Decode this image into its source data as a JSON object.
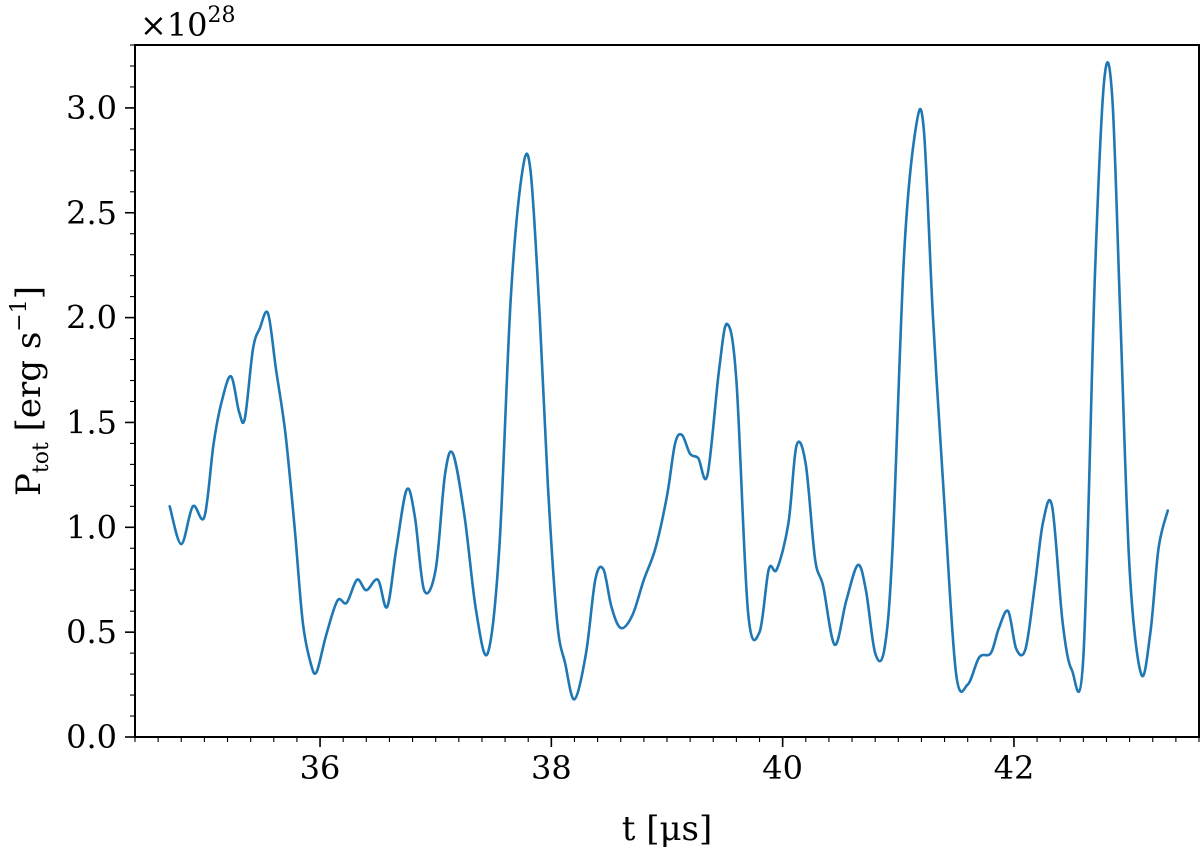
{
  "chart_data": {
    "type": "line",
    "title": "",
    "xlabel": "t [μs]",
    "ylabel": "P_tot [erg s^-1]",
    "ylabel_main": "P",
    "ylabel_sub": "tot",
    "ylabel_rest": " [erg s",
    "ylabel_sup": "−1",
    "ylabel_close": "]",
    "y_multiplier_prefix": "×10",
    "y_multiplier_exponent": "28",
    "xlim": [
      34.4,
      43.6
    ],
    "ylim": [
      0.0,
      3.3
    ],
    "x_major_ticks": [
      36,
      38,
      40,
      42
    ],
    "x_tick_labels": [
      "36",
      "38",
      "40",
      "42"
    ],
    "x_minor_step": 0.2,
    "y_major_ticks": [
      0.0,
      0.5,
      1.0,
      1.5,
      2.0,
      2.5,
      3.0
    ],
    "y_tick_labels": [
      "0.0",
      "0.5",
      "1.0",
      "1.5",
      "2.0",
      "2.5",
      "3.0"
    ],
    "y_minor_step": 0.1,
    "grid": false,
    "series": [
      {
        "color": "#1f77b4",
        "x": [
          34.7,
          34.8,
          34.9,
          35.0,
          35.08,
          35.15,
          35.23,
          35.3,
          35.35,
          35.42,
          35.48,
          35.55,
          35.62,
          35.7,
          35.78,
          35.85,
          35.92,
          35.97,
          36.05,
          36.15,
          36.23,
          36.32,
          36.4,
          36.5,
          36.58,
          36.66,
          36.75,
          36.82,
          36.9,
          37.0,
          37.08,
          37.15,
          37.25,
          37.35,
          37.45,
          37.55,
          37.65,
          37.75,
          37.82,
          37.9,
          37.97,
          38.05,
          38.12,
          38.2,
          38.3,
          38.38,
          38.45,
          38.52,
          38.6,
          38.7,
          38.8,
          38.9,
          39.0,
          39.07,
          39.13,
          39.2,
          39.27,
          39.35,
          39.45,
          39.52,
          39.6,
          39.7,
          39.8,
          39.88,
          39.95,
          40.05,
          40.12,
          40.2,
          40.28,
          40.35,
          40.45,
          40.55,
          40.65,
          40.72,
          40.8,
          40.88,
          40.95,
          41.05,
          41.15,
          41.22,
          41.3,
          41.4,
          41.5,
          41.6,
          41.7,
          41.8,
          41.87,
          41.95,
          42.02,
          42.1,
          42.18,
          42.25,
          42.33,
          42.42,
          42.5,
          42.6,
          42.7,
          42.78,
          42.85,
          42.92,
          43.0,
          43.1,
          43.18,
          43.25,
          43.33
        ],
        "y": [
          1.1,
          0.92,
          1.1,
          1.05,
          1.4,
          1.6,
          1.72,
          1.55,
          1.52,
          1.85,
          1.95,
          2.02,
          1.75,
          1.45,
          1.0,
          0.55,
          0.35,
          0.31,
          0.48,
          0.65,
          0.64,
          0.75,
          0.7,
          0.75,
          0.62,
          0.9,
          1.18,
          1.05,
          0.7,
          0.8,
          1.25,
          1.35,
          1.05,
          0.6,
          0.4,
          0.9,
          2.1,
          2.7,
          2.7,
          2.0,
          1.2,
          0.55,
          0.35,
          0.18,
          0.4,
          0.75,
          0.8,
          0.62,
          0.52,
          0.58,
          0.75,
          0.9,
          1.15,
          1.4,
          1.44,
          1.35,
          1.33,
          1.25,
          1.75,
          1.97,
          1.7,
          0.6,
          0.5,
          0.8,
          0.8,
          1.02,
          1.39,
          1.3,
          0.85,
          0.72,
          0.44,
          0.65,
          0.82,
          0.7,
          0.4,
          0.42,
          0.9,
          2.3,
          2.9,
          2.9,
          2.0,
          1.1,
          0.3,
          0.25,
          0.38,
          0.4,
          0.52,
          0.6,
          0.42,
          0.42,
          0.72,
          1.02,
          1.1,
          0.55,
          0.32,
          0.38,
          2.2,
          3.13,
          3.05,
          2.0,
          0.8,
          0.3,
          0.5,
          0.9,
          1.08
        ]
      }
    ]
  }
}
